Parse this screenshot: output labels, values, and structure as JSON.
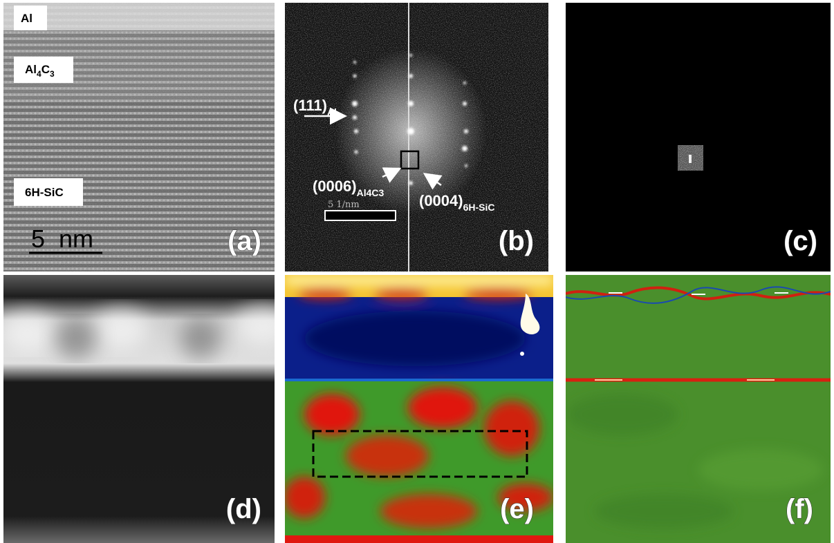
{
  "panel_a": {
    "label": "(a)",
    "layers": {
      "al": "Al",
      "al4c3": [
        "Al",
        "4",
        "C",
        "3"
      ],
      "sic": "6H-SiC"
    },
    "scale_bar": "5  nm"
  },
  "panel_b": {
    "label": "(b)",
    "spots": {
      "al": {
        "main": "(111)",
        "sub": "Al"
      },
      "al4c3": {
        "main": "(0006)",
        "sub": "Al4C3"
      },
      "sic": {
        "main": "(0004)",
        "sub": "6H-SiC"
      }
    },
    "scale_bar": "5 1/nm"
  },
  "panel_c": {
    "label": "(c)"
  },
  "panel_d": {
    "label": "(d)"
  },
  "panel_e": {
    "label": "(e)"
  },
  "panel_f": {
    "label": "(f)"
  }
}
